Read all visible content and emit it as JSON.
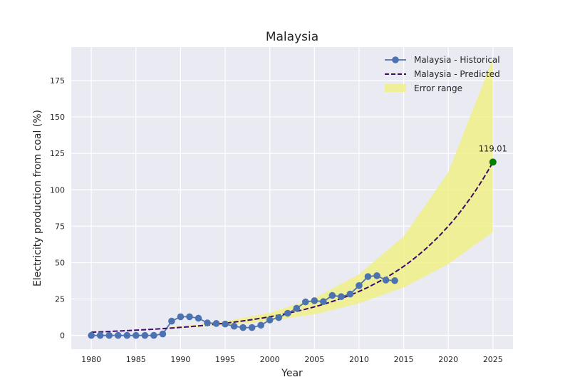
{
  "chart_data": {
    "type": "line",
    "title": "Malaysia",
    "xlabel": "Year",
    "ylabel": "Electricity production from coal (%)",
    "xlim": [
      1977.75,
      2027.25
    ],
    "ylim": [
      -9.5,
      198
    ],
    "x_ticks": [
      1980,
      1985,
      1990,
      1995,
      2000,
      2005,
      2010,
      2015,
      2020,
      2025
    ],
    "y_ticks": [
      0,
      25,
      50,
      75,
      100,
      125,
      150,
      175
    ],
    "grid": true,
    "legend_position": "top-right",
    "series": [
      {
        "name": "Malaysia - Historical",
        "style": "line-marker",
        "color": "#4c72b0",
        "x": [
          1980,
          1981,
          1982,
          1983,
          1984,
          1985,
          1986,
          1987,
          1988,
          1989,
          1990,
          1991,
          1992,
          1993,
          1994,
          1995,
          1996,
          1997,
          1998,
          1999,
          2000,
          2001,
          2002,
          2003,
          2004,
          2005,
          2006,
          2007,
          2008,
          2009,
          2010,
          2011,
          2012,
          2013,
          2014
        ],
        "y": [
          0,
          0,
          0,
          0,
          0,
          0,
          0,
          0,
          1,
          9.8,
          12.8,
          12.8,
          11.8,
          8.6,
          8.2,
          7.8,
          6.3,
          5.4,
          5.4,
          7,
          10.6,
          12.2,
          15.2,
          18.6,
          23,
          23.8,
          23.2,
          27.4,
          26.6,
          28.4,
          34.2,
          40.4,
          41,
          38,
          37.6
        ]
      },
      {
        "name": "Malaysia - Predicted",
        "style": "dashed",
        "color": "#3d0b6b",
        "x": [
          1980,
          1985,
          1990,
          1995,
          2000,
          2005,
          2010,
          2015,
          2020,
          2025
        ],
        "y": [
          2.2,
          3.6,
          5.5,
          8.4,
          12.8,
          19.6,
          30.2,
          47.4,
          75,
          119.01
        ]
      },
      {
        "name": "Error range",
        "style": "band",
        "color": "#f0f080",
        "x": [
          1988,
          1990,
          1995,
          2000,
          2005,
          2010,
          2015,
          2020,
          2025
        ],
        "lower": [
          4.5,
          5,
          7,
          10,
          14.5,
          22,
          33,
          49,
          71
        ],
        "upper": [
          5.5,
          6.2,
          9.8,
          15.5,
          25.5,
          42,
          68,
          112,
          190
        ]
      }
    ],
    "annotation": {
      "x": 2025,
      "y": 119.01,
      "text": "119.01",
      "color": "#008000"
    }
  }
}
